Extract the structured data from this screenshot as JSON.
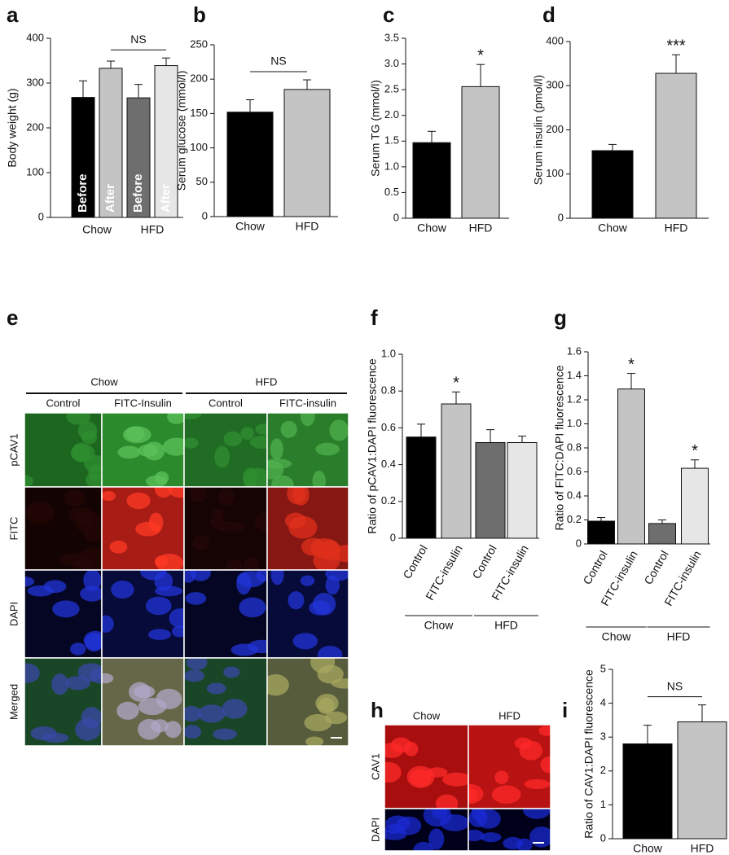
{
  "chart_data": [
    {
      "type": "bar",
      "panel": "a",
      "ylabel": "Body weight (g)",
      "categories": [
        "Before",
        "After",
        "Before",
        "After"
      ],
      "label_position": "inside",
      "groups": [
        "Chow",
        "HFD"
      ],
      "values": [
        268,
        333,
        267,
        339
      ],
      "errors": [
        37,
        16,
        30,
        17
      ],
      "colors": [
        "#000000",
        "#c4c4c4",
        "#6e6e6e",
        "#e6e6e6"
      ],
      "bracket_label": "NS",
      "ylim": [
        0,
        400
      ],
      "yticks": [
        0,
        100,
        200,
        300,
        400
      ]
    },
    {
      "type": "bar",
      "panel": "b",
      "ylabel": "Serum glucose (mmol/l)",
      "categories": [
        "Chow",
        "HFD"
      ],
      "label_position": "below",
      "values": [
        152,
        185
      ],
      "errors": [
        18,
        14
      ],
      "colors": [
        "#000000",
        "#c4c4c4"
      ],
      "bracket_label": "NS",
      "ylim": [
        0,
        250
      ],
      "yticks": [
        0,
        50,
        100,
        150,
        200,
        250
      ]
    },
    {
      "type": "bar",
      "panel": "c",
      "ylabel": "Serum TG (mmol/l)",
      "categories": [
        "Chow",
        "HFD"
      ],
      "label_position": "below",
      "values": [
        1.47,
        2.56
      ],
      "errors": [
        0.22,
        0.43
      ],
      "colors": [
        "#000000",
        "#c4c4c4"
      ],
      "significance": [
        null,
        "*"
      ],
      "ylim": [
        0,
        3.5
      ],
      "yticks": [
        0,
        0.5,
        {
          "value": 1,
          "label": "1.0"
        },
        1.5,
        {
          "value": 2,
          "label": "2.0"
        },
        2.5,
        {
          "value": 3,
          "label": "3.0"
        },
        3.5
      ]
    },
    {
      "type": "bar",
      "panel": "d",
      "ylabel": "Serum insulin (pmol/l)",
      "categories": [
        "Chow",
        "HFD"
      ],
      "label_position": "below",
      "values": [
        153,
        328
      ],
      "errors": [
        14,
        42
      ],
      "colors": [
        "#000000",
        "#c4c4c4"
      ],
      "significance": [
        null,
        "***"
      ],
      "ylim": [
        0,
        400
      ],
      "yticks": [
        0,
        100,
        200,
        300,
        400
      ]
    },
    {
      "type": "bar",
      "panel": "f",
      "ylabel": "Ratio of pCAV1:DAPI fluorescence",
      "categories": [
        "Control",
        "FITC-insulin",
        "Control",
        "FITC-insulin"
      ],
      "label_position": "rotated",
      "groups": [
        "Chow",
        "HFD"
      ],
      "values": [
        0.55,
        0.73,
        0.52,
        0.52
      ],
      "errors": [
        0.07,
        0.065,
        0.07,
        0.035
      ],
      "colors": [
        "#000000",
        "#c4c4c4",
        "#6e6e6e",
        "#e6e6e6"
      ],
      "significance": [
        null,
        "*",
        null,
        null
      ],
      "ylim": [
        0,
        1
      ],
      "yticks": [
        0,
        0.2,
        0.4,
        0.6,
        0.8,
        {
          "value": 1,
          "label": "1.0"
        }
      ]
    },
    {
      "type": "bar",
      "panel": "g",
      "ylabel": "Ratio of FITC:DAPI fluorescence",
      "categories": [
        "Control",
        "FITC-insulin",
        "Control",
        "FITC-insulin"
      ],
      "label_position": "rotated",
      "groups": [
        "Chow",
        "HFD"
      ],
      "values": [
        0.19,
        1.29,
        0.17,
        0.63
      ],
      "errors": [
        0.03,
        0.13,
        0.03,
        0.07
      ],
      "colors": [
        "#000000",
        "#c4c4c4",
        "#6e6e6e",
        "#e6e6e6"
      ],
      "significance": [
        null,
        "*",
        null,
        "*"
      ],
      "ylim": [
        0,
        1.6
      ],
      "yticks": [
        0,
        0.2,
        0.4,
        0.6,
        0.8,
        {
          "value": 1,
          "label": "1.0"
        },
        1.2,
        1.4,
        1.6
      ]
    },
    {
      "type": "bar",
      "panel": "i",
      "ylabel": "Ratio of CAV1:DAPI fluorescence",
      "categories": [
        "Chow",
        "HFD"
      ],
      "label_position": "below",
      "values": [
        2.8,
        3.45
      ],
      "errors": [
        0.55,
        0.5
      ],
      "colors": [
        "#000000",
        "#c4c4c4"
      ],
      "bracket_label": "NS",
      "ylim": [
        0,
        5
      ],
      "yticks": [
        0,
        1,
        2,
        3,
        4,
        5
      ]
    }
  ],
  "images": [
    {
      "panel": "e",
      "groups": [
        "Chow",
        "HFD"
      ],
      "columns": [
        "Control",
        "FITC-Insulin",
        "Control",
        "FITC-insulin"
      ],
      "rows": [
        "pCAV1",
        "FITC",
        "DAPI",
        "Merged"
      ]
    },
    {
      "panel": "h",
      "columns": [
        "Chow",
        "HFD"
      ],
      "rows": [
        "CAV1",
        "DAPI"
      ]
    }
  ]
}
